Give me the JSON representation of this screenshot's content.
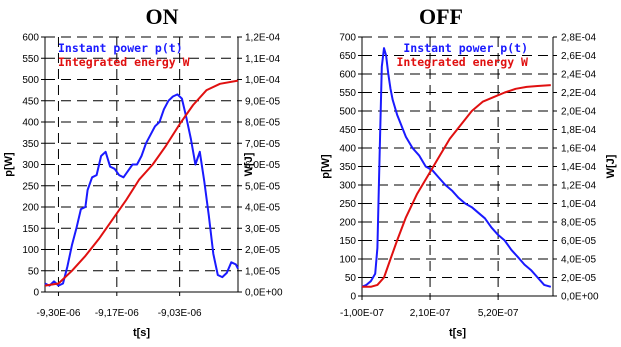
{
  "chart_data": [
    {
      "type": "line",
      "title": "ON",
      "xlabel": "t[s]",
      "ylabel": "p[W]",
      "y2label": "W[J]",
      "xlim": [
        -9.33e-06,
        -8.9e-06
      ],
      "ylim": [
        0,
        600
      ],
      "y2lim": [
        0,
        0.00012
      ],
      "x_tick_labels": [
        "-9,30E-06",
        "-9,17E-06",
        "-9,03E-06"
      ],
      "x_ticks": [
        -9.3e-06,
        -9.17e-06,
        -9.03e-06
      ],
      "y_ticks": [
        0,
        50,
        100,
        150,
        200,
        250,
        300,
        350,
        400,
        450,
        500,
        550,
        600
      ],
      "y_tick_labels": [
        "0",
        "50",
        "100",
        "150",
        "200",
        "250",
        "300",
        "350",
        "400",
        "450",
        "500",
        "550",
        "600"
      ],
      "y2_ticks": [
        0,
        1e-05,
        2e-05,
        3e-05,
        4e-05,
        5e-05,
        6e-05,
        7e-05,
        8e-05,
        9e-05,
        0.0001,
        0.00011,
        0.00012
      ],
      "y2_tick_labels": [
        "0,0E+00",
        "1,0E-05",
        "2,0E-05",
        "3,0E-05",
        "4,0E-05",
        "5,0E-05",
        "6,0E-05",
        "7,0E-05",
        "8,0E-05",
        "9,0E-05",
        "1,0E-04",
        "1,1E-04",
        "1,2E-04"
      ],
      "grid": true,
      "legend_position": "top-left",
      "series": [
        {
          "name": "Instant power p(t)",
          "axis": "left",
          "color": "#1a1aff",
          "x": [
            -9.33e-06,
            -9.32e-06,
            -9.31e-06,
            -9.3e-06,
            -9.29e-06,
            -9.28e-06,
            -9.27e-06,
            -9.26e-06,
            -9.25e-06,
            -9.24e-06,
            -9.235e-06,
            -9.225e-06,
            -9.215e-06,
            -9.205e-06,
            -9.195e-06,
            -9.185e-06,
            -9.175e-06,
            -9.165e-06,
            -9.155e-06,
            -9.145e-06,
            -9.135e-06,
            -9.125e-06,
            -9.115e-06,
            -9.105e-06,
            -9.095e-06,
            -9.085e-06,
            -9.075e-06,
            -9.065e-06,
            -9.055e-06,
            -9.045e-06,
            -9.035e-06,
            -9.025e-06,
            -9.015e-06,
            -9.005e-06,
            -8.995e-06,
            -8.985e-06,
            -8.975e-06,
            -8.965e-06,
            -8.955e-06,
            -8.945e-06,
            -8.935e-06,
            -8.925e-06,
            -8.915e-06,
            -8.905e-06,
            -8.9e-06
          ],
          "values": [
            20,
            15,
            25,
            15,
            20,
            60,
            110,
            150,
            195,
            200,
            240,
            270,
            275,
            320,
            330,
            295,
            290,
            275,
            270,
            285,
            300,
            300,
            320,
            350,
            370,
            390,
            400,
            430,
            450,
            460,
            465,
            455,
            410,
            360,
            300,
            330,
            260,
            180,
            90,
            40,
            35,
            45,
            70,
            65,
            55
          ]
        },
        {
          "name": "Integrated energy W",
          "axis": "right",
          "color": "#e01010",
          "x": [
            -9.33e-06,
            -9.3e-06,
            -9.27e-06,
            -9.24e-06,
            -9.21e-06,
            -9.18e-06,
            -9.15e-06,
            -9.12e-06,
            -9.09e-06,
            -9.06e-06,
            -9.03e-06,
            -9e-06,
            -8.97e-06,
            -8.94e-06,
            -8.9e-06
          ],
          "values": [
            3e-06,
            4e-06,
            1e-05,
            1.7e-05,
            2.5e-05,
            3.4e-05,
            4.3e-05,
            5.3e-05,
            6e-05,
            6.9e-05,
            7.9e-05,
            8.8e-05,
            9.5e-05,
            9.8e-05,
            9.95e-05
          ]
        }
      ]
    },
    {
      "type": "line",
      "title": "OFF",
      "xlabel": "t[s]",
      "ylabel": "p[W]",
      "y2label": "W[J]",
      "xlim": [
        -1e-07,
        7.7e-07
      ],
      "ylim": [
        0,
        700
      ],
      "y2lim": [
        0,
        0.00028
      ],
      "x_tick_labels": [
        "-1,00E-07",
        "2,10E-07",
        "5,20E-07"
      ],
      "x_ticks": [
        -1e-07,
        2.1e-07,
        5.2e-07
      ],
      "y_ticks": [
        0,
        50,
        100,
        150,
        200,
        250,
        300,
        350,
        400,
        450,
        500,
        550,
        600,
        650,
        700
      ],
      "y_tick_labels": [
        "0",
        "50",
        "100",
        "150",
        "200",
        "250",
        "300",
        "350",
        "400",
        "450",
        "500",
        "550",
        "600",
        "650",
        "700"
      ],
      "y2_ticks": [
        0,
        2e-05,
        4e-05,
        6e-05,
        8e-05,
        0.0001,
        0.00012,
        0.00014,
        0.00016,
        0.00018,
        0.0002,
        0.00022,
        0.00024,
        0.00026,
        0.00028
      ],
      "y2_tick_labels": [
        "0,0E+00",
        "2,0E-05",
        "4,0E-05",
        "6,0E-05",
        "8,0E-05",
        "1,0E-04",
        "1,2E-04",
        "1,4E-04",
        "1,6E-04",
        "1,8E-04",
        "2,0E-04",
        "2,2E-04",
        "2,4E-04",
        "2,6E-04",
        "2,8E-04"
      ],
      "grid": true,
      "legend_position": "top-right",
      "series": [
        {
          "name": "Instant power p(t)",
          "axis": "left",
          "color": "#1a1aff",
          "x": [
            -1e-07,
            -8e-08,
            -6e-08,
            -4e-08,
            -3e-08,
            -2e-08,
            -1e-08,
            0.0,
            1e-08,
            2e-08,
            3e-08,
            4e-08,
            6e-08,
            8e-08,
            1e-07,
            1.3e-07,
            1.6e-07,
            1.9e-07,
            2.2e-07,
            2.5e-07,
            2.8e-07,
            3.1e-07,
            3.4e-07,
            3.7e-07,
            4e-07,
            4.3e-07,
            4.6e-07,
            4.9e-07,
            5.2e-07,
            5.5e-07,
            5.8e-07,
            6.1e-07,
            6.4e-07,
            6.7e-07,
            7e-07,
            7.3e-07,
            7.6e-07
          ],
          "values": [
            25,
            30,
            40,
            60,
            130,
            380,
            620,
            670,
            650,
            600,
            560,
            530,
            490,
            460,
            430,
            400,
            380,
            350,
            340,
            320,
            300,
            285,
            265,
            250,
            240,
            225,
            210,
            185,
            165,
            150,
            125,
            105,
            85,
            70,
            50,
            30,
            25
          ]
        },
        {
          "name": "Integrated energy W",
          "axis": "right",
          "color": "#e01010",
          "x": [
            -1e-07,
            -6e-08,
            -3e-08,
            0.0,
            3e-08,
            6e-08,
            1e-07,
            1.5e-07,
            2e-07,
            2.5e-07,
            3e-07,
            3.5e-07,
            4e-07,
            4.5e-07,
            5e-07,
            5.5e-07,
            6e-07,
            6.5e-07,
            7e-07,
            7.6e-07
          ],
          "values": [
            1e-05,
            1e-05,
            1.2e-05,
            2e-05,
            4e-05,
            6e-05,
            8.5e-05,
            0.00011,
            0.00013,
            0.00015,
            0.00017,
            0.000185,
            0.0002,
            0.00021,
            0.000215,
            0.00022,
            0.000224,
            0.000226,
            0.000227,
            0.000228
          ]
        }
      ]
    }
  ]
}
